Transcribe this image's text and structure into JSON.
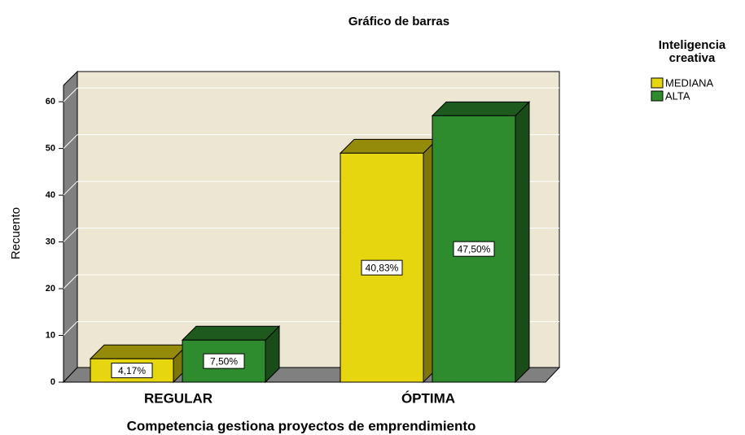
{
  "chart_data": {
    "type": "bar3d",
    "title": "Gráfico de barras",
    "x_label": "Competencia gestiona proyectos de emprendimiento",
    "y_label": "Recuento",
    "legend_title": "Inteligencia creativa",
    "categories": [
      "REGULAR",
      "ÓPTIMA"
    ],
    "series": [
      {
        "name": "MEDIANA",
        "color": "#e5d60f",
        "values": [
          5,
          49
        ],
        "data_labels": [
          "4,17%",
          "40,83%"
        ]
      },
      {
        "name": "ALTA",
        "color": "#2e8b2e",
        "values": [
          9,
          57
        ],
        "data_labels": [
          "7,50%",
          "47,50%"
        ]
      }
    ],
    "ylim": [
      0,
      63.5
    ],
    "yticks": [
      0,
      10,
      20,
      30,
      40,
      50,
      60
    ],
    "grid": true
  }
}
